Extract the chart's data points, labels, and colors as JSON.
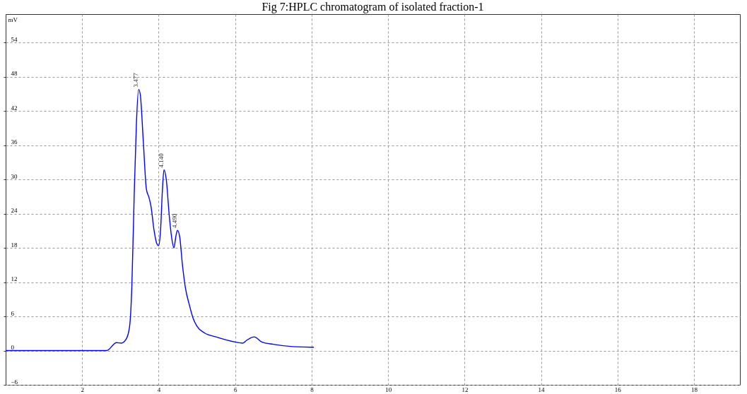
{
  "chart_data": {
    "type": "line",
    "title": "Fig 7:HPLC chromatogram of isolated fraction-1",
    "ylabel": "mV",
    "x": [
      0,
      2.64,
      2.9,
      3.02,
      3.15,
      3.24,
      3.3,
      3.36,
      3.42,
      3.477,
      3.52,
      3.6,
      3.68,
      3.75,
      3.8,
      3.88,
      3.95,
      4.0,
      4.05,
      4.1,
      4.14,
      4.2,
      4.28,
      4.35,
      4.4,
      4.45,
      4.49,
      4.55,
      4.62,
      4.7,
      4.8,
      4.9,
      5.0,
      5.2,
      5.5,
      6.0,
      6.2,
      6.3,
      6.5,
      6.7,
      7.0,
      7.5,
      8.0,
      8.06
    ],
    "series": [
      {
        "color": "#0000ff",
        "values": [
          0,
          0,
          1.4,
          1.3,
          2.0,
          4.2,
          11.3,
          27,
          40,
          45.8,
          44.9,
          36.6,
          28.3,
          26.8,
          25.3,
          21.1,
          18.8,
          18.4,
          21.1,
          28.3,
          31.7,
          30,
          23.5,
          19.4,
          18,
          20,
          21.1,
          20,
          15.2,
          11,
          8.1,
          5.7,
          4.3,
          3.1,
          2.4,
          1.5,
          1.3,
          1.8,
          2.4,
          1.5,
          1.1,
          0.7,
          0.6,
          0.6
        ]
      }
    ],
    "annotations": [
      {
        "text": "3.477",
        "x": 3.477,
        "y": 45.8
      },
      {
        "text": "4.140",
        "x": 4.14,
        "y": 31.7
      },
      {
        "text": "4.490",
        "x": 4.49,
        "y": 21.1
      }
    ],
    "xlim": [
      0,
      19.2
    ],
    "ylim": [
      -6,
      59
    ],
    "xticks": [
      2,
      4,
      6,
      8,
      10,
      12,
      14,
      16,
      18
    ],
    "yticks": [
      -6,
      0,
      6,
      12,
      18,
      24,
      30,
      36,
      42,
      48,
      54
    ],
    "grid": true,
    "line_style": "solid"
  }
}
